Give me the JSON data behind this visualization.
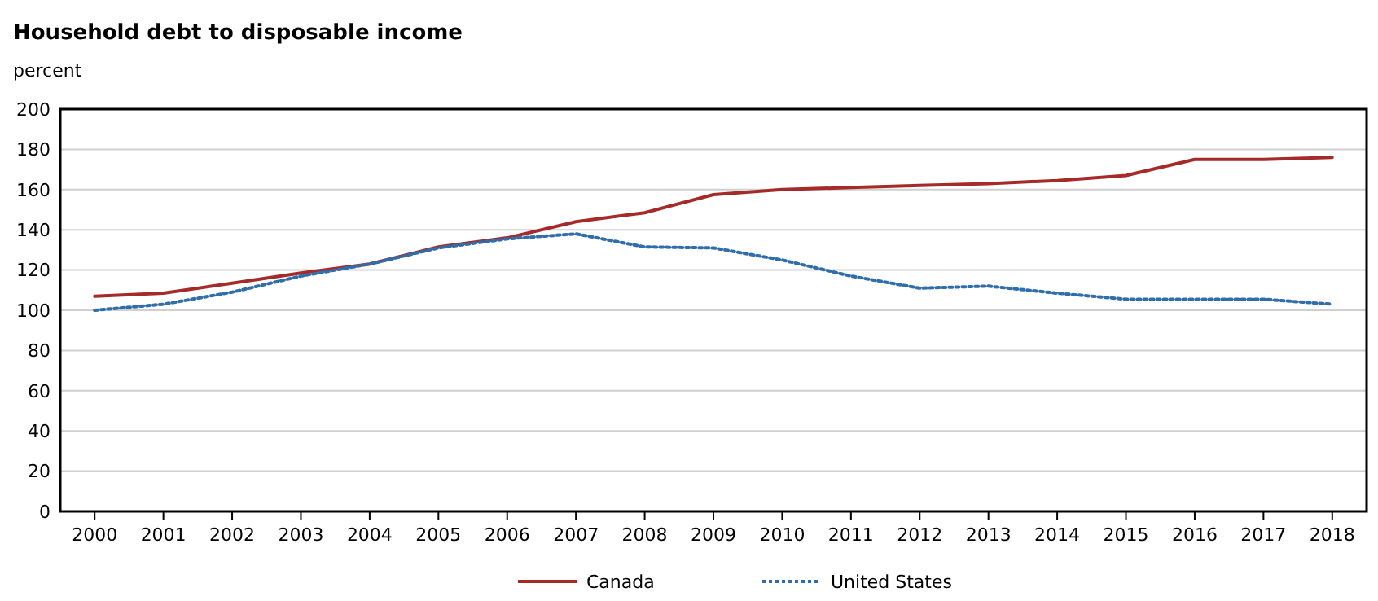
{
  "chart_data": {
    "type": "line",
    "title": "Household debt to disposable income",
    "ylabel": "percent",
    "categories": [
      "2000",
      "2001",
      "2002",
      "2003",
      "2004",
      "2005",
      "2006",
      "2007",
      "2008",
      "2009",
      "2010",
      "2011",
      "2012",
      "2013",
      "2014",
      "2015",
      "2016",
      "2017",
      "2018"
    ],
    "series": [
      {
        "name": "Canada",
        "color": "#a52a2a",
        "line_style": "solid",
        "values": [
          107,
          108.5,
          113.5,
          118.5,
          123,
          131.5,
          136,
          144,
          148.5,
          157.5,
          160,
          161,
          162,
          163,
          164.5,
          167,
          175,
          175,
          176
        ]
      },
      {
        "name": "United States",
        "color": "#2f6ea8",
        "line_style": "dotted",
        "values": [
          100,
          103,
          109,
          117,
          123,
          131,
          135.5,
          138,
          131.5,
          131,
          125,
          117,
          111,
          112,
          108.5,
          105.5,
          105.5,
          105.5,
          103
        ]
      }
    ],
    "ylim": [
      0,
      200
    ],
    "yticks": [
      0,
      20,
      40,
      60,
      80,
      100,
      120,
      140,
      160,
      180,
      200
    ],
    "grid": "y",
    "legend": "bottom",
    "marker": "none"
  }
}
